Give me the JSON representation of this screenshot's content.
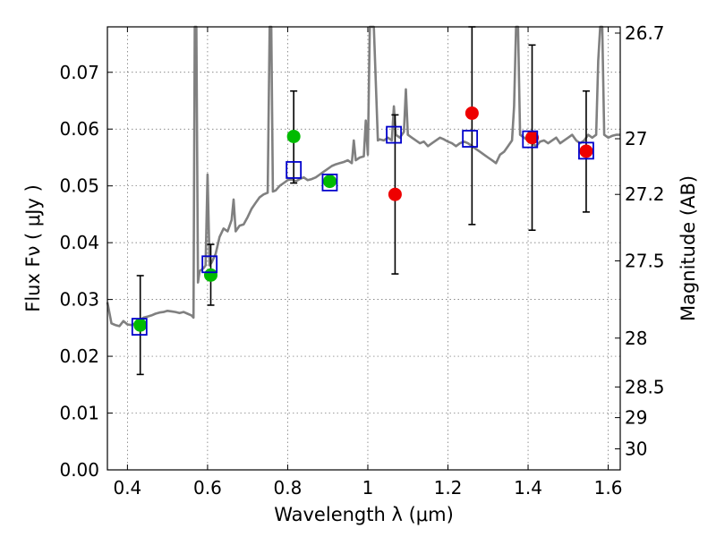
{
  "chart_data": {
    "type": "scatter",
    "xlabel": "Wavelength  λ (μm)",
    "ylabel": "Flux  Fν  ( μJy )",
    "ylabel_right": "Magnitude (AB)",
    "xlim": [
      0.35,
      1.63
    ],
    "ylim": [
      0.0,
      0.078
    ],
    "grid": true,
    "x_ticks": [
      0.4,
      0.6,
      0.8,
      1.0,
      1.2,
      1.4,
      1.6
    ],
    "x_tick_labels": [
      "0.4",
      "0.6",
      "0.8",
      "1",
      "1.2",
      "1.4",
      "1.6"
    ],
    "y_ticks": [
      0.0,
      0.01,
      0.02,
      0.03,
      0.04,
      0.05,
      0.06,
      0.07
    ],
    "y_tick_labels": [
      "0.00",
      "0.01",
      "0.02",
      "0.03",
      "0.04",
      "0.05",
      "0.06",
      "0.07"
    ],
    "right_ticks": [
      {
        "label": "26.7",
        "flux": 0.0769
      },
      {
        "label": "27",
        "flux": 0.0583
      },
      {
        "label": "27.2",
        "flux": 0.0485
      },
      {
        "label": "27.5",
        "flux": 0.0368
      },
      {
        "label": "28",
        "flux": 0.0232
      },
      {
        "label": "28.5",
        "flux": 0.0146
      },
      {
        "label": "29",
        "flux": 0.0092
      },
      {
        "label": "30",
        "flux": 0.0037
      }
    ],
    "colors": {
      "model": "#808080",
      "model_points": "#0000cc",
      "green_points": "#00bb00",
      "red_points": "#ee0000",
      "errorbars": "#000000"
    },
    "series": [
      {
        "kind": "model_spectrum",
        "points": [
          [
            0.35,
            0.0295
          ],
          [
            0.36,
            0.0258
          ],
          [
            0.37,
            0.0255
          ],
          [
            0.38,
            0.0253
          ],
          [
            0.39,
            0.0262
          ],
          [
            0.4,
            0.0256
          ],
          [
            0.41,
            0.0255
          ],
          [
            0.42,
            0.0258
          ],
          [
            0.43,
            0.0263
          ],
          [
            0.44,
            0.0268
          ],
          [
            0.45,
            0.027
          ],
          [
            0.46,
            0.0272
          ],
          [
            0.47,
            0.0275
          ],
          [
            0.48,
            0.0277
          ],
          [
            0.49,
            0.0278
          ],
          [
            0.5,
            0.028
          ],
          [
            0.51,
            0.0279
          ],
          [
            0.52,
            0.0278
          ],
          [
            0.53,
            0.0276
          ],
          [
            0.54,
            0.0278
          ],
          [
            0.55,
            0.0275
          ],
          [
            0.56,
            0.0272
          ],
          [
            0.565,
            0.0268
          ],
          [
            0.568,
            0.078
          ],
          [
            0.572,
            0.078
          ],
          [
            0.576,
            0.033
          ],
          [
            0.58,
            0.035
          ],
          [
            0.59,
            0.0355
          ],
          [
            0.595,
            0.036
          ],
          [
            0.6,
            0.052
          ],
          [
            0.605,
            0.036
          ],
          [
            0.61,
            0.0365
          ],
          [
            0.62,
            0.038
          ],
          [
            0.63,
            0.041
          ],
          [
            0.64,
            0.0425
          ],
          [
            0.65,
            0.042
          ],
          [
            0.66,
            0.044
          ],
          [
            0.665,
            0.0476
          ],
          [
            0.67,
            0.042
          ],
          [
            0.68,
            0.043
          ],
          [
            0.69,
            0.0432
          ],
          [
            0.7,
            0.0445
          ],
          [
            0.71,
            0.046
          ],
          [
            0.72,
            0.047
          ],
          [
            0.73,
            0.048
          ],
          [
            0.74,
            0.0485
          ],
          [
            0.75,
            0.0488
          ],
          [
            0.755,
            0.078
          ],
          [
            0.759,
            0.078
          ],
          [
            0.763,
            0.049
          ],
          [
            0.77,
            0.0492
          ],
          [
            0.78,
            0.05
          ],
          [
            0.79,
            0.0505
          ],
          [
            0.8,
            0.051
          ],
          [
            0.81,
            0.0512
          ],
          [
            0.82,
            0.0508
          ],
          [
            0.83,
            0.0512
          ],
          [
            0.84,
            0.0515
          ],
          [
            0.85,
            0.051
          ],
          [
            0.86,
            0.0512
          ],
          [
            0.87,
            0.0515
          ],
          [
            0.88,
            0.052
          ],
          [
            0.89,
            0.0525
          ],
          [
            0.9,
            0.053
          ],
          [
            0.91,
            0.0535
          ],
          [
            0.92,
            0.0538
          ],
          [
            0.93,
            0.054
          ],
          [
            0.94,
            0.0542
          ],
          [
            0.95,
            0.0545
          ],
          [
            0.96,
            0.054
          ],
          [
            0.965,
            0.058
          ],
          [
            0.97,
            0.0545
          ],
          [
            0.98,
            0.055
          ],
          [
            0.99,
            0.0552
          ],
          [
            0.995,
            0.0615
          ],
          [
            1.0,
            0.0555
          ],
          [
            1.005,
            0.078
          ],
          [
            1.015,
            0.078
          ],
          [
            1.025,
            0.058
          ],
          [
            1.03,
            0.0582
          ],
          [
            1.04,
            0.058
          ],
          [
            1.05,
            0.0585
          ],
          [
            1.06,
            0.058
          ],
          [
            1.065,
            0.064
          ],
          [
            1.07,
            0.059
          ],
          [
            1.08,
            0.0585
          ],
          [
            1.09,
            0.0595
          ],
          [
            1.095,
            0.067
          ],
          [
            1.1,
            0.059
          ],
          [
            1.11,
            0.0585
          ],
          [
            1.12,
            0.058
          ],
          [
            1.13,
            0.0575
          ],
          [
            1.14,
            0.0578
          ],
          [
            1.15,
            0.057
          ],
          [
            1.16,
            0.0575
          ],
          [
            1.17,
            0.058
          ],
          [
            1.18,
            0.0585
          ],
          [
            1.19,
            0.0582
          ],
          [
            1.2,
            0.0578
          ],
          [
            1.21,
            0.0575
          ],
          [
            1.22,
            0.057
          ],
          [
            1.23,
            0.0575
          ],
          [
            1.24,
            0.0578
          ],
          [
            1.25,
            0.0575
          ],
          [
            1.26,
            0.057
          ],
          [
            1.27,
            0.0565
          ],
          [
            1.28,
            0.056
          ],
          [
            1.29,
            0.0555
          ],
          [
            1.3,
            0.055
          ],
          [
            1.31,
            0.0545
          ],
          [
            1.32,
            0.054
          ],
          [
            1.33,
            0.0555
          ],
          [
            1.34,
            0.056
          ],
          [
            1.35,
            0.057
          ],
          [
            1.36,
            0.058
          ],
          [
            1.365,
            0.064
          ],
          [
            1.37,
            0.078
          ],
          [
            1.375,
            0.078
          ],
          [
            1.38,
            0.059
          ],
          [
            1.39,
            0.0585
          ],
          [
            1.4,
            0.058
          ],
          [
            1.41,
            0.0575
          ],
          [
            1.42,
            0.057
          ],
          [
            1.43,
            0.0578
          ],
          [
            1.44,
            0.058
          ],
          [
            1.45,
            0.0575
          ],
          [
            1.46,
            0.058
          ],
          [
            1.47,
            0.0585
          ],
          [
            1.48,
            0.0575
          ],
          [
            1.49,
            0.058
          ],
          [
            1.5,
            0.0585
          ],
          [
            1.51,
            0.059
          ],
          [
            1.52,
            0.058
          ],
          [
            1.53,
            0.0575
          ],
          [
            1.54,
            0.058
          ],
          [
            1.55,
            0.059
          ],
          [
            1.56,
            0.0585
          ],
          [
            1.57,
            0.059
          ],
          [
            1.575,
            0.072
          ],
          [
            1.58,
            0.078
          ],
          [
            1.585,
            0.078
          ],
          [
            1.59,
            0.059
          ],
          [
            1.6,
            0.0585
          ],
          [
            1.61,
            0.0588
          ],
          [
            1.62,
            0.059
          ],
          [
            1.63,
            0.059
          ]
        ]
      },
      {
        "kind": "model_photometry",
        "points": [
          [
            0.43,
            0.0252
          ],
          [
            0.605,
            0.0362
          ],
          [
            0.815,
            0.0528
          ],
          [
            0.905,
            0.0506
          ],
          [
            1.065,
            0.059
          ],
          [
            1.255,
            0.0583
          ],
          [
            1.405,
            0.0582
          ],
          [
            1.545,
            0.0562
          ]
        ]
      },
      {
        "kind": "green_points",
        "points": [
          [
            0.432,
            0.0255
          ],
          [
            0.608,
            0.0343
          ],
          [
            0.815,
            0.0587
          ],
          [
            0.905,
            0.0508
          ]
        ]
      },
      {
        "kind": "red_points",
        "points": [
          [
            1.068,
            0.0485
          ],
          [
            1.26,
            0.0628
          ],
          [
            1.41,
            0.0585
          ],
          [
            1.545,
            0.0561
          ]
        ]
      },
      {
        "kind": "errorbars",
        "points": [
          [
            0.432,
            0.0255,
            0.0168,
            0.0342
          ],
          [
            0.608,
            0.0343,
            0.029,
            0.0397
          ],
          [
            0.815,
            0.0587,
            0.0505,
            0.0667
          ],
          [
            1.068,
            0.0485,
            0.0345,
            0.0625
          ],
          [
            1.26,
            0.0628,
            0.0432,
            0.078
          ],
          [
            1.41,
            0.0585,
            0.0422,
            0.0748
          ],
          [
            1.545,
            0.0561,
            0.0454,
            0.0667
          ]
        ]
      }
    ]
  }
}
